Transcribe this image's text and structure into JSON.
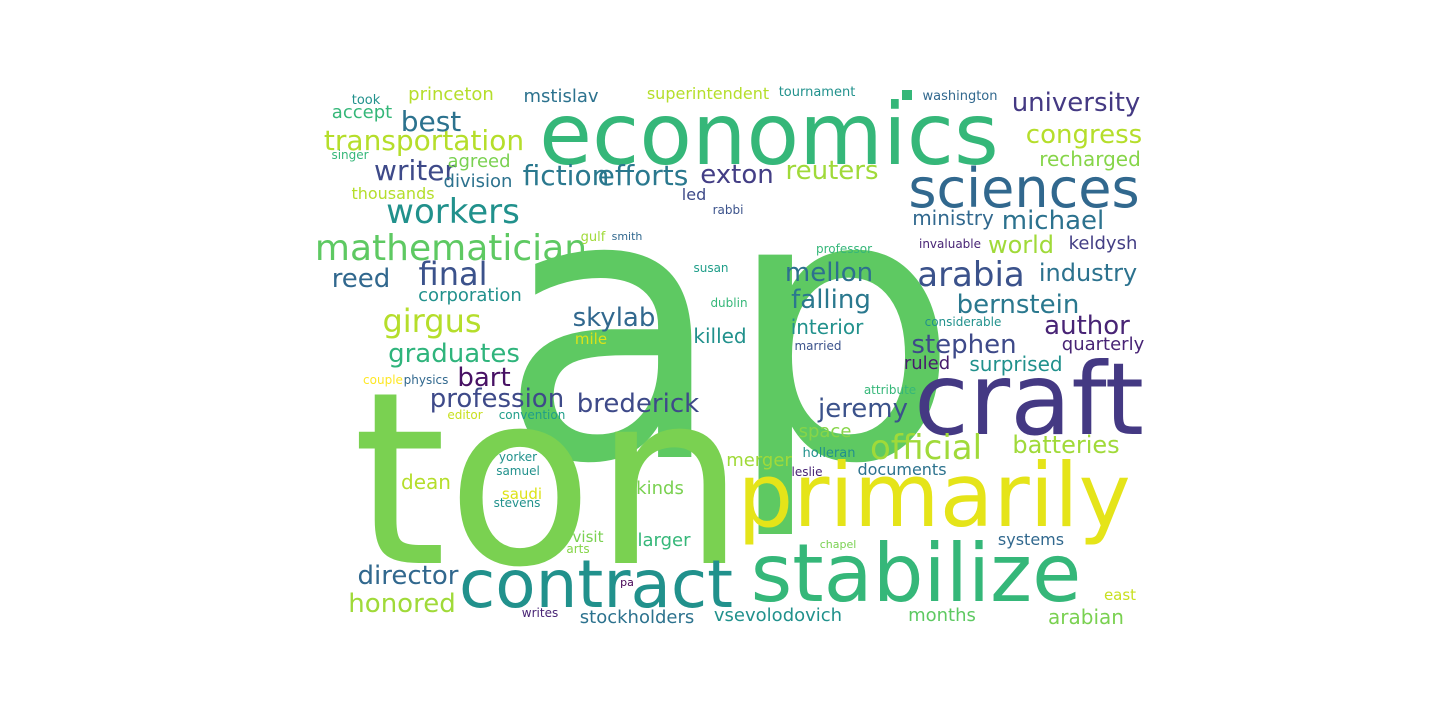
{
  "words": [
    {
      "text": "ap",
      "color": "#5ec962"
    },
    {
      "text": "ton",
      "color": "#7ad151"
    },
    {
      "text": "economics",
      "color": "#35b779"
    },
    {
      "text": "craft",
      "color": "#443983"
    },
    {
      "text": "primarily",
      "color": "#e5e419"
    },
    {
      "text": "stabilize",
      "color": "#35b779"
    },
    {
      "text": "contract",
      "color": "#21918c"
    },
    {
      "text": "sciences",
      "color": "#31688e"
    },
    {
      "text": "mathematician",
      "color": "#5ec962"
    },
    {
      "text": "workers",
      "color": "#21918c"
    },
    {
      "text": "transportation",
      "color": "#b5de2b"
    },
    {
      "text": "university",
      "color": "#443983"
    },
    {
      "text": "arabia",
      "color": "#3b528b"
    },
    {
      "text": "official",
      "color": "#a0da39"
    },
    {
      "text": "girgus",
      "color": "#b5de2b"
    },
    {
      "text": "final",
      "color": "#3b528b"
    },
    {
      "text": "fiction",
      "color": "#2a788e"
    },
    {
      "text": "efforts",
      "color": "#2a788e"
    },
    {
      "text": "writer",
      "color": "#3e4a89"
    },
    {
      "text": "best",
      "color": "#2c728e"
    },
    {
      "text": "congress",
      "color": "#b5de2b"
    },
    {
      "text": "reuters",
      "color": "#a0da39"
    },
    {
      "text": "exton",
      "color": "#433e85"
    },
    {
      "text": "michael",
      "color": "#2c728e"
    },
    {
      "text": "bernstein",
      "color": "#2a788e"
    },
    {
      "text": "author",
      "color": "#482475"
    },
    {
      "text": "stephen",
      "color": "#3e4a89"
    },
    {
      "text": "jeremy",
      "color": "#3b528b"
    },
    {
      "text": "brederick",
      "color": "#3e4a89"
    },
    {
      "text": "profession",
      "color": "#3e4a89"
    },
    {
      "text": "graduates",
      "color": "#2fb47c"
    },
    {
      "text": "bart",
      "color": "#471164"
    },
    {
      "text": "skylab",
      "color": "#31688e"
    },
    {
      "text": "mellon",
      "color": "#2d708e"
    },
    {
      "text": "falling",
      "color": "#2a788e"
    },
    {
      "text": "industry",
      "color": "#2c728e"
    },
    {
      "text": "world",
      "color": "#a0da39"
    },
    {
      "text": "reed",
      "color": "#31688e"
    },
    {
      "text": "director",
      "color": "#31688e"
    },
    {
      "text": "honored",
      "color": "#a0da39"
    },
    {
      "text": "batteries",
      "color": "#a0da39"
    },
    {
      "text": "recharged",
      "color": "#86d549"
    },
    {
      "text": "ministry",
      "color": "#31688e"
    },
    {
      "text": "keldysh",
      "color": "#433e85"
    },
    {
      "text": "interior",
      "color": "#21918c"
    },
    {
      "text": "surprised",
      "color": "#21918c"
    },
    {
      "text": "quarterly",
      "color": "#482475"
    },
    {
      "text": "ruled",
      "color": "#481b6d"
    },
    {
      "text": "killed",
      "color": "#21918c"
    },
    {
      "text": "corporation",
      "color": "#21918c"
    },
    {
      "text": "division",
      "color": "#2c728e"
    },
    {
      "text": "agreed",
      "color": "#7ad151"
    },
    {
      "text": "accept",
      "color": "#35b779"
    },
    {
      "text": "princeton",
      "color": "#b5de2b"
    },
    {
      "text": "mstislav",
      "color": "#2c728e"
    },
    {
      "text": "superintendent",
      "color": "#b5de2b"
    },
    {
      "text": "tournament",
      "color": "#21918c"
    },
    {
      "text": "washington",
      "color": "#31688e"
    },
    {
      "text": "took",
      "color": "#21918c"
    },
    {
      "text": "singer",
      "color": "#35b779"
    },
    {
      "text": "thousands",
      "color": "#b5de2b"
    },
    {
      "text": "led",
      "color": "#3e4a89"
    },
    {
      "text": "rabbi",
      "color": "#3b528b"
    },
    {
      "text": "gulf",
      "color": "#a0da39"
    },
    {
      "text": "smith",
      "color": "#31688e"
    },
    {
      "text": "professor",
      "color": "#35b779"
    },
    {
      "text": "invaluable",
      "color": "#482475"
    },
    {
      "text": "susan",
      "color": "#1f9e89"
    },
    {
      "text": "dublin",
      "color": "#35b779"
    },
    {
      "text": "considerable",
      "color": "#21918c"
    },
    {
      "text": "mile",
      "color": "#dde318"
    },
    {
      "text": "married",
      "color": "#3b528b"
    },
    {
      "text": "couple",
      "color": "#fde725"
    },
    {
      "text": "physics",
      "color": "#31688e"
    },
    {
      "text": "attribute",
      "color": "#35b779"
    },
    {
      "text": "editor",
      "color": "#c8e020"
    },
    {
      "text": "convention",
      "color": "#1f9e89"
    },
    {
      "text": "space",
      "color": "#86d549"
    },
    {
      "text": "merger",
      "color": "#a0da39"
    },
    {
      "text": "documents",
      "color": "#2c728e"
    },
    {
      "text": "holleran",
      "color": "#21918c"
    },
    {
      "text": "leslie",
      "color": "#482475"
    },
    {
      "text": "yorker",
      "color": "#21918c"
    },
    {
      "text": "samuel",
      "color": "#21918c"
    },
    {
      "text": "dean",
      "color": "#b5de2b"
    },
    {
      "text": "saudi",
      "color": "#dde318"
    },
    {
      "text": "stevens",
      "color": "#21918c"
    },
    {
      "text": "kinds",
      "color": "#7ad151"
    },
    {
      "text": "larger",
      "color": "#35b779"
    },
    {
      "text": "visit",
      "color": "#7ad151"
    },
    {
      "text": "arts",
      "color": "#86d549"
    },
    {
      "text": "chapel",
      "color": "#7ad151"
    },
    {
      "text": "systems",
      "color": "#31688e"
    },
    {
      "text": "pa",
      "color": "#440154"
    },
    {
      "text": "east",
      "color": "#c8e020"
    },
    {
      "text": "writes",
      "color": "#482475"
    },
    {
      "text": "stockholders",
      "color": "#2c728e"
    },
    {
      "text": "vsevolodovich",
      "color": "#21918c"
    },
    {
      "text": "months",
      "color": "#5ec962"
    },
    {
      "text": "arabian",
      "color": "#7ad151"
    }
  ],
  "marker_color": "#35b779"
}
